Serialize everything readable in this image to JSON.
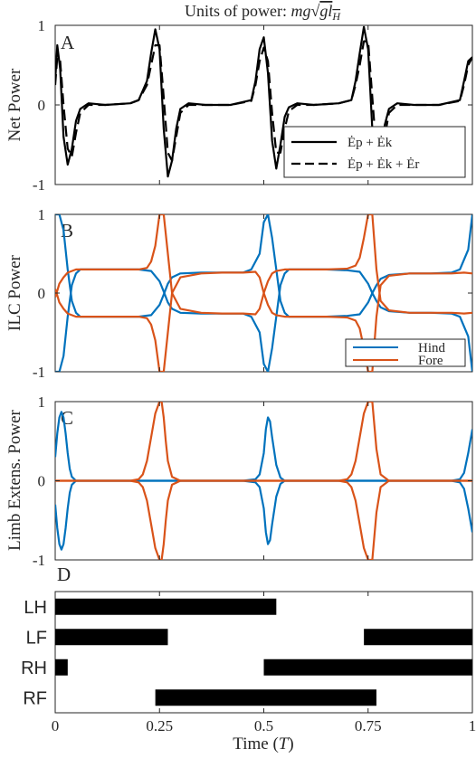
{
  "figure": {
    "title": "Units of power: mg√(gl_H)",
    "xlabel": "Time (T)",
    "x_ticks": [
      "0",
      "0.25",
      "0.5",
      "0.75",
      "1"
    ],
    "y_ticks": [
      "-1",
      "0",
      "1"
    ],
    "colors": {
      "hind": "#0072BD",
      "fore": "#D95319",
      "black": "#000000"
    }
  },
  "chart_data": [
    {
      "panel": "A",
      "type": "line",
      "ylabel": "Net Power",
      "xlim": [
        0,
        1
      ],
      "ylim": [
        -1,
        1
      ],
      "legend_position": "bottom-right",
      "series": [
        {
          "name": "Ėp + Ėk",
          "style": "solid",
          "x": [
            0,
            0.005,
            0.012,
            0.02,
            0.03,
            0.04,
            0.05,
            0.06,
            0.08,
            0.12,
            0.18,
            0.2,
            0.22,
            0.23,
            0.24,
            0.25,
            0.26,
            0.27,
            0.28,
            0.29,
            0.3,
            0.32,
            0.36,
            0.42,
            0.47,
            0.48,
            0.49,
            0.5,
            0.51,
            0.52,
            0.53,
            0.54,
            0.55,
            0.56,
            0.58,
            0.62,
            0.68,
            0.71,
            0.72,
            0.73,
            0.74,
            0.75,
            0.76,
            0.77,
            0.78,
            0.79,
            0.8,
            0.82,
            0.86,
            0.92,
            0.97,
            0.98,
            0.99,
            1.0
          ],
          "y": [
            0.3,
            0.75,
            0.45,
            -0.4,
            -0.75,
            -0.55,
            -0.2,
            -0.05,
            0.02,
            0.0,
            0.02,
            0.06,
            0.3,
            0.65,
            0.95,
            0.7,
            -0.3,
            -0.9,
            -0.7,
            -0.3,
            -0.05,
            0.02,
            0.0,
            0.0,
            0.06,
            0.3,
            0.7,
            0.85,
            0.4,
            -0.45,
            -0.8,
            -0.5,
            -0.15,
            -0.03,
            0.02,
            0.0,
            0.02,
            0.06,
            0.3,
            0.65,
            0.98,
            0.7,
            -0.3,
            -0.88,
            -0.65,
            -0.25,
            -0.05,
            0.02,
            0.0,
            0.0,
            0.06,
            0.3,
            0.55,
            0.6
          ]
        },
        {
          "name": "Ėp + Ėk + Ėr",
          "style": "dashed",
          "x": [
            0,
            0.005,
            0.012,
            0.02,
            0.03,
            0.04,
            0.05,
            0.06,
            0.08,
            0.12,
            0.18,
            0.2,
            0.22,
            0.23,
            0.24,
            0.25,
            0.26,
            0.27,
            0.28,
            0.29,
            0.3,
            0.32,
            0.36,
            0.42,
            0.47,
            0.48,
            0.49,
            0.5,
            0.51,
            0.52,
            0.53,
            0.54,
            0.55,
            0.56,
            0.58,
            0.62,
            0.68,
            0.71,
            0.72,
            0.73,
            0.74,
            0.75,
            0.76,
            0.77,
            0.78,
            0.79,
            0.8,
            0.82,
            0.86,
            0.92,
            0.97,
            0.98,
            0.99,
            1.0
          ],
          "y": [
            0.25,
            0.6,
            0.55,
            0.0,
            -0.55,
            -0.65,
            -0.35,
            -0.1,
            0.0,
            0.0,
            0.02,
            0.06,
            0.25,
            0.5,
            0.75,
            0.75,
            0.1,
            -0.6,
            -0.7,
            -0.4,
            -0.1,
            0.0,
            0.0,
            0.0,
            0.05,
            0.25,
            0.55,
            0.72,
            0.55,
            -0.1,
            -0.6,
            -0.6,
            -0.3,
            -0.08,
            0.0,
            0.0,
            0.02,
            0.06,
            0.25,
            0.5,
            0.8,
            0.8,
            0.1,
            -0.6,
            -0.7,
            -0.4,
            -0.1,
            0.0,
            0.0,
            0.0,
            0.05,
            0.25,
            0.5,
            0.6
          ]
        }
      ]
    },
    {
      "panel": "B",
      "type": "line",
      "ylabel": "ILC Power",
      "xlim": [
        0,
        1
      ],
      "ylim": [
        -1,
        1
      ],
      "legend_position": "bottom-right",
      "series": [
        {
          "name": "Hind",
          "color": "#0072BD",
          "mirror": true,
          "x": [
            0,
            0.01,
            0.02,
            0.03,
            0.04,
            0.05,
            0.06,
            0.08,
            0.1,
            0.15,
            0.2,
            0.23,
            0.25,
            0.26,
            0.27,
            0.28,
            0.3,
            0.35,
            0.4,
            0.45,
            0.47,
            0.49,
            0.5,
            0.51,
            0.52,
            0.53,
            0.54,
            0.55,
            0.56,
            0.58,
            0.6,
            0.65,
            0.7,
            0.73,
            0.75,
            0.76,
            0.77,
            0.78,
            0.8,
            0.85,
            0.9,
            0.95,
            0.97,
            0.99,
            1.0
          ],
          "y": [
            1.0,
            1.0,
            0.8,
            0.3,
            -0.1,
            -0.25,
            -0.3,
            -0.3,
            -0.3,
            -0.3,
            -0.3,
            -0.28,
            -0.15,
            -0.02,
            0.12,
            0.2,
            0.25,
            0.26,
            0.26,
            0.26,
            0.3,
            0.5,
            0.9,
            1.0,
            0.7,
            0.3,
            -0.1,
            -0.25,
            -0.3,
            -0.3,
            -0.3,
            -0.3,
            -0.29,
            -0.27,
            -0.12,
            0.0,
            0.1,
            0.18,
            0.23,
            0.25,
            0.25,
            0.26,
            0.3,
            0.55,
            1.0
          ]
        },
        {
          "name": "Fore",
          "color": "#D95319",
          "mirror": true,
          "x": [
            0,
            0.005,
            0.01,
            0.02,
            0.03,
            0.05,
            0.08,
            0.1,
            0.15,
            0.2,
            0.22,
            0.23,
            0.24,
            0.25,
            0.26,
            0.27,
            0.28,
            0.3,
            0.35,
            0.4,
            0.45,
            0.48,
            0.49,
            0.5,
            0.51,
            0.52,
            0.53,
            0.55,
            0.6,
            0.65,
            0.7,
            0.72,
            0.73,
            0.74,
            0.75,
            0.76,
            0.77,
            0.78,
            0.8,
            0.85,
            0.9,
            0.95,
            0.98,
            1.0
          ],
          "y": [
            -0.05,
            0.03,
            0.12,
            0.2,
            0.26,
            0.3,
            0.3,
            0.3,
            0.3,
            0.3,
            0.32,
            0.4,
            0.6,
            1.0,
            1.0,
            0.5,
            0.0,
            -0.2,
            -0.25,
            -0.26,
            -0.26,
            -0.27,
            -0.2,
            0.0,
            0.15,
            0.25,
            0.28,
            0.3,
            0.3,
            0.3,
            0.31,
            0.35,
            0.45,
            0.7,
            1.0,
            1.0,
            0.3,
            -0.1,
            -0.22,
            -0.25,
            -0.25,
            -0.25,
            -0.26,
            -0.25
          ]
        }
      ]
    },
    {
      "panel": "C",
      "type": "line",
      "ylabel": "Limb Extens. Power",
      "xlim": [
        0,
        1
      ],
      "ylim": [
        -1,
        1
      ],
      "series": [
        {
          "name": "Hind",
          "color": "#0072BD",
          "mirror": true,
          "x": [
            0,
            0.005,
            0.01,
            0.015,
            0.02,
            0.025,
            0.03,
            0.035,
            0.04,
            0.05,
            0.06,
            0.1,
            0.45,
            0.48,
            0.49,
            0.5,
            0.505,
            0.51,
            0.515,
            0.52,
            0.53,
            0.54,
            0.55,
            0.6,
            0.95,
            0.97,
            0.98,
            0.99,
            1.0
          ],
          "y": [
            0.3,
            0.6,
            0.8,
            0.87,
            0.8,
            0.6,
            0.35,
            0.15,
            0.05,
            0.0,
            0.0,
            0.0,
            0.0,
            0.02,
            0.08,
            0.35,
            0.65,
            0.8,
            0.75,
            0.55,
            0.2,
            0.04,
            0.0,
            0.0,
            0.0,
            0.02,
            0.1,
            0.35,
            0.65
          ]
        },
        {
          "name": "Fore",
          "color": "#D95319",
          "mirror": true,
          "x": [
            0,
            0.1,
            0.18,
            0.2,
            0.21,
            0.22,
            0.23,
            0.24,
            0.25,
            0.255,
            0.26,
            0.265,
            0.27,
            0.28,
            0.3,
            0.35,
            0.68,
            0.7,
            0.71,
            0.72,
            0.73,
            0.74,
            0.75,
            0.76,
            0.765,
            0.77,
            0.78,
            0.8,
            0.85,
            1.0
          ],
          "y": [
            0.0,
            0.0,
            0.0,
            0.02,
            0.08,
            0.25,
            0.55,
            0.85,
            1.0,
            1.0,
            0.8,
            0.5,
            0.25,
            0.05,
            0.0,
            0.0,
            0.0,
            0.02,
            0.08,
            0.25,
            0.55,
            0.85,
            1.0,
            1.0,
            0.7,
            0.4,
            0.08,
            0.0,
            0.0,
            0.0
          ]
        }
      ]
    },
    {
      "panel": "D",
      "type": "gantt",
      "xlim": [
        0,
        1
      ],
      "rows": [
        {
          "label": "LH",
          "intervals": [
            [
              0,
              0.53
            ]
          ]
        },
        {
          "label": "LF",
          "intervals": [
            [
              0,
              0.27
            ],
            [
              0.74,
              1.0
            ]
          ]
        },
        {
          "label": "RH",
          "intervals": [
            [
              0,
              0.03
            ],
            [
              0.5,
              1.0
            ]
          ]
        },
        {
          "label": "RF",
          "intervals": [
            [
              0.24,
              0.77
            ]
          ]
        }
      ]
    }
  ]
}
